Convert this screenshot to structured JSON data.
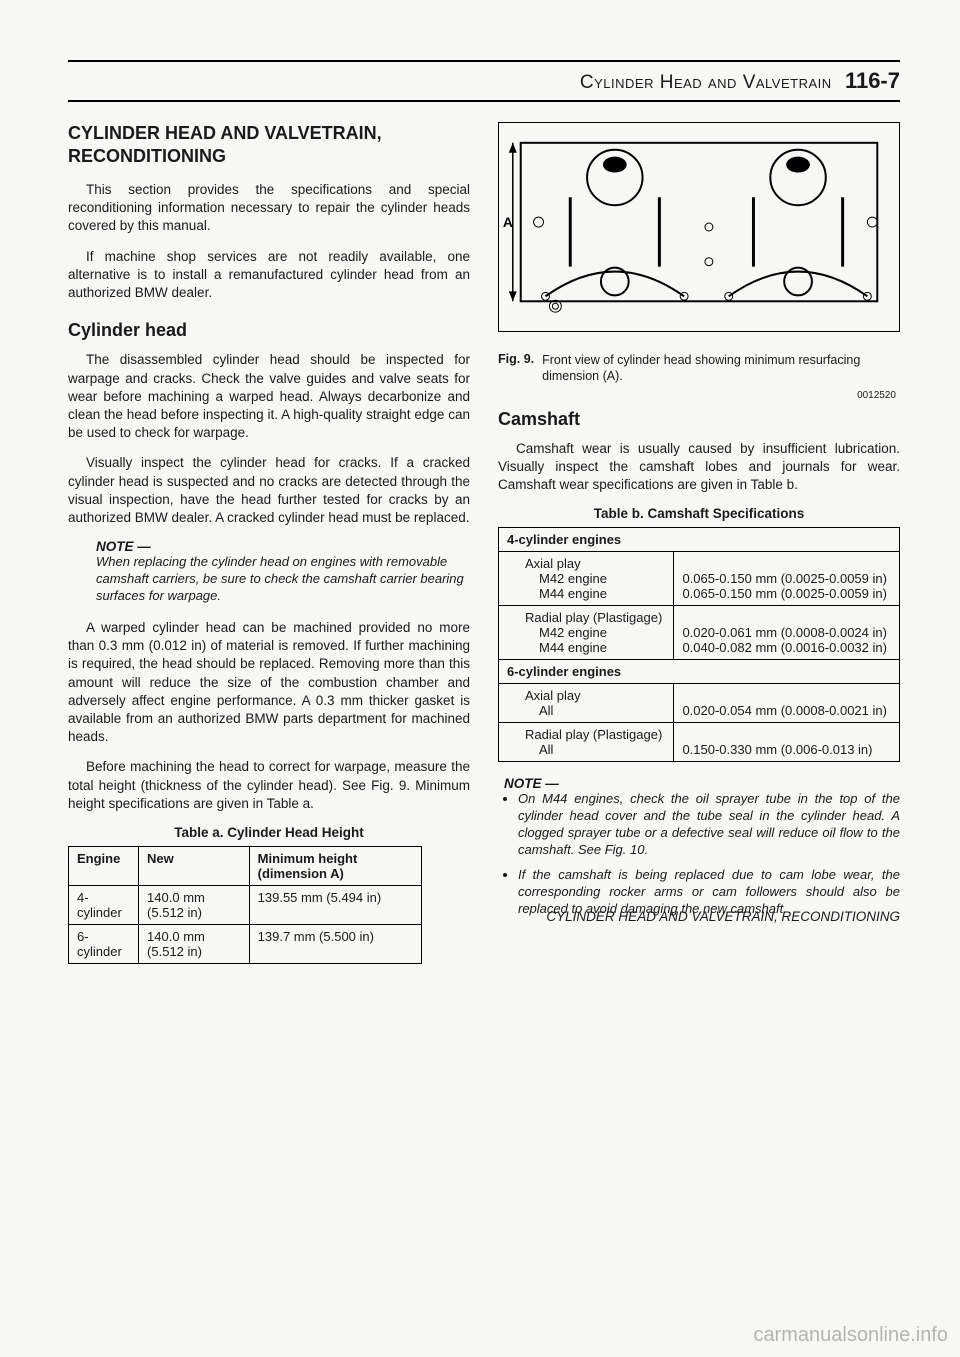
{
  "header": {
    "section_title": "Cylinder Head and Valvetrain",
    "page_number": "116-7"
  },
  "left": {
    "h1_line1": "CYLINDER HEAD AND VALVETRAIN,",
    "h1_line2": "RECONDITIONING",
    "p1": "This section provides the specifications and special reconditioning information necessary to repair the cylinder heads covered by this manual.",
    "p2": "If machine shop services are not readily available, one alternative is to install a remanufactured cylinder head from an authorized BMW dealer.",
    "h2_cylhead": "Cylinder head",
    "p3": "The disassembled cylinder head should be inspected for warpage and cracks. Check the valve guides and valve seats for wear before machining a warped head. Always decarbonize and clean the head before inspecting it. A high-quality straight edge can be used to check for warpage.",
    "p4": "Visually inspect the cylinder head for cracks. If a cracked cylinder head is suspected and no cracks are detected through the visual inspection, have the head further tested for cracks by an authorized BMW dealer. A cracked cylinder head must be replaced.",
    "note1_label": "NOTE —",
    "note1_text": "When replacing the cylinder head on engines with removable camshaft carriers, be sure to check the camshaft carrier bearing surfaces for warpage.",
    "p5": "A warped cylinder head can be machined provided no more than 0.3 mm (0.012 in) of material is removed. If further machining is required, the head should be replaced. Removing more than this amount will reduce the size of the combustion chamber and adversely affect engine performance. A 0.3 mm thicker gasket is available from an authorized BMW parts department for machined heads.",
    "p6": "Before machining the head to correct for warpage, measure the total height (thickness of the cylinder head). See Fig. 9. Minimum height specifications are given in Table a.",
    "table_a": {
      "title": "Table a. Cylinder Head Height",
      "columns": [
        "Engine",
        "New",
        "Minimum height (dimension A)"
      ],
      "rows": [
        [
          "4-cylinder",
          "140.0 mm (5.512 in)",
          "139.55 mm (5.494 in)"
        ],
        [
          "6-cylinder",
          "140.0 mm (5.512 in)",
          "139.7 mm (5.500 in)"
        ]
      ]
    }
  },
  "right": {
    "fig_id": "0012520",
    "fig_label_bold": "Fig. 9.",
    "fig_caption": "Front view of cylinder head showing minimum resurfacing dimension (A).",
    "h2_cam": "Camshaft",
    "p1": "Camshaft wear is usually caused by insufficient lubrication. Visually inspect the camshaft lobes and journals for wear. Camshaft wear specifications are given in Table b.",
    "table_b": {
      "title": "Table b. Camshaft Specifications",
      "rows": [
        {
          "type": "section",
          "label": "4-cylinder engines",
          "val": ""
        },
        {
          "type": "sub",
          "label": "Axial play",
          "val": ""
        },
        {
          "type": "sub2",
          "label": "M42 engine",
          "val": "0.065-0.150 mm (0.0025-0.0059 in)"
        },
        {
          "type": "sub2",
          "label": "M44 engine",
          "val": "0.065-0.150 mm (0.0025-0.0059 in)"
        },
        {
          "type": "sub",
          "label": "Radial play (Plastigage)",
          "val": ""
        },
        {
          "type": "sub2",
          "label": "M42 engine",
          "val": "0.020-0.061 mm (0.0008-0.0024 in)"
        },
        {
          "type": "sub2",
          "label": "M44 engine",
          "val": "0.040-0.082 mm (0.0016-0.0032 in)"
        },
        {
          "type": "section",
          "label": "6-cylinder engines",
          "val": ""
        },
        {
          "type": "sub",
          "label": "Axial play",
          "val": ""
        },
        {
          "type": "sub2",
          "label": "All",
          "val": "0.020-0.054 mm (0.0008-0.0021 in)"
        },
        {
          "type": "sub",
          "label": "Radial play (Plastigage)",
          "val": ""
        },
        {
          "type": "sub2",
          "label": "All",
          "val": "0.150-0.330 mm (0.006-0.013 in)"
        }
      ]
    },
    "note2_label": "NOTE —",
    "note2_items": [
      "On M44 engines, check the oil sprayer tube in the top of the cylinder head cover and the tube seal in the cylinder head. A clogged sprayer tube or a defective seal will reduce oil flow to the camshaft. See Fig. 10.",
      "If the camshaft is being replaced due to cam lobe wear, the corresponding rocker arms or cam followers should also be replaced to avoid damaging the new camshaft."
    ]
  },
  "footer": "CYLINDER HEAD AND VALVETRAIN, RECONDITIONING",
  "watermark": "carmanualsonline.info"
}
